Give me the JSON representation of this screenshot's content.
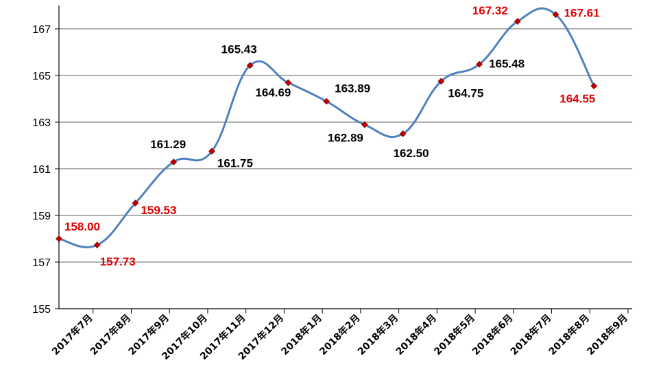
{
  "chart_data": {
    "type": "line",
    "title": "",
    "xlabel": "",
    "ylabel": "",
    "categories": [
      "2017年7月",
      "2017年8月",
      "2017年9月",
      "2017年10月",
      "2017年11月",
      "2017年12月",
      "2018年1月",
      "2018年2月",
      "2018年3月",
      "2018年4月",
      "2018年5月",
      "2018年6月",
      "2018年7月",
      "2018年8月",
      "2018年9月"
    ],
    "series": [
      {
        "values": [
          158.0,
          157.73,
          159.53,
          161.29,
          161.75,
          165.43,
          164.69,
          163.89,
          162.89,
          162.5,
          164.75,
          165.48,
          167.32,
          167.61,
          164.55
        ],
        "labels": [
          "158.00",
          "157.73",
          "159.53",
          "161.29",
          "161.75",
          "165.43",
          "164.69",
          "163.89",
          "162.89",
          "162.50",
          "164.75",
          "165.48",
          "167.32",
          "167.61",
          "164.55"
        ],
        "label_colors": [
          "red",
          "red",
          "red",
          "black",
          "black",
          "black",
          "black",
          "black",
          "black",
          "black",
          "black",
          "black",
          "red",
          "red",
          "red"
        ]
      }
    ],
    "yticks": [
      "155",
      "157",
      "159",
      "161",
      "163",
      "165",
      "167"
    ],
    "ylim": [
      155,
      168
    ],
    "grid": true,
    "smooth": true,
    "colors": {
      "line": "#4f81bd",
      "marker": "#c00000",
      "grid": "#808080",
      "red": "#e00000",
      "black": "#000000"
    }
  }
}
